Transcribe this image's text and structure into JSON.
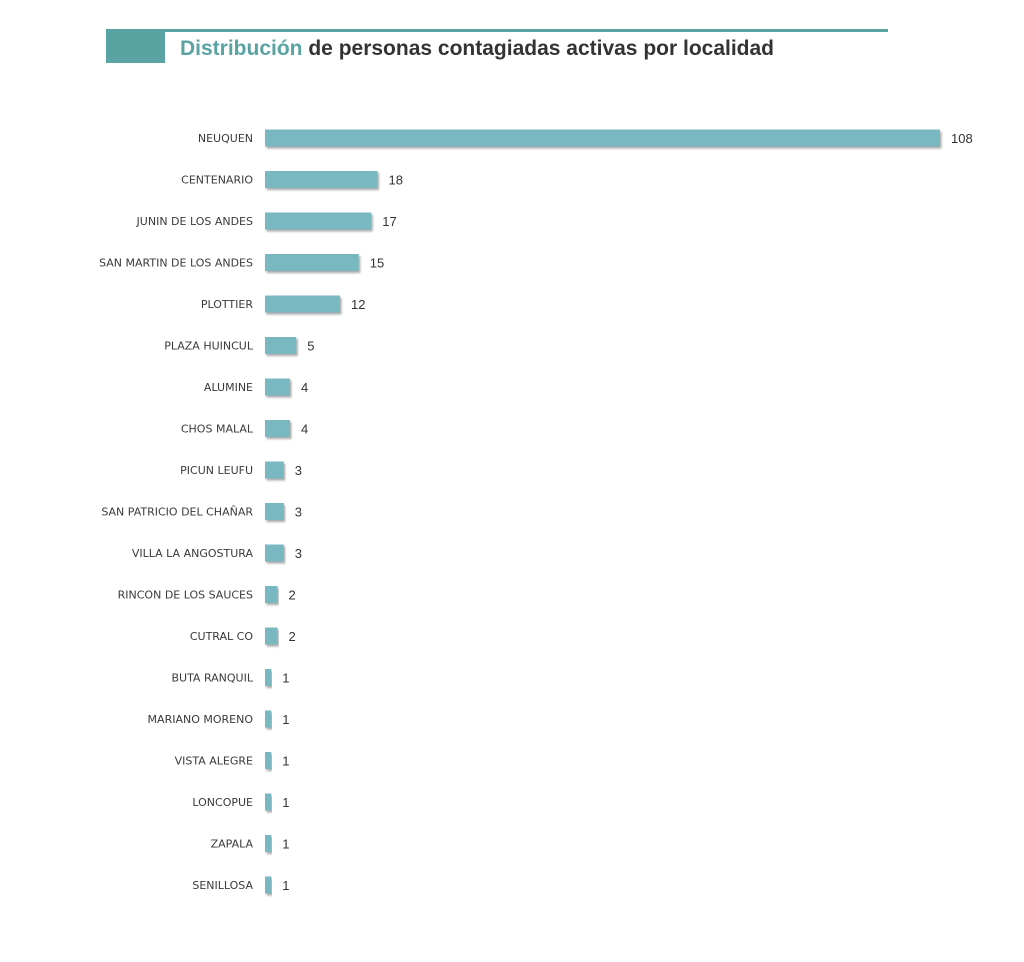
{
  "colors": {
    "accent": "#5aa3a3",
    "bar": "#7ab8c1",
    "bar_shadow": "#8a8a8a"
  },
  "header": {
    "title_highlight": "Distribución",
    "title_rest": " de personas contagiadas activas por localidad"
  },
  "chart_data": {
    "type": "bar",
    "orientation": "horizontal",
    "title": "Distribución de personas contagiadas activas por localidad",
    "categories": [
      "NEUQUEN",
      "CENTENARIO",
      "JUNIN DE LOS ANDES",
      "SAN MARTIN DE LOS ANDES",
      "PLOTTIER",
      "PLAZA HUINCUL",
      "ALUMINE",
      "CHOS MALAL",
      "PICUN LEUFU",
      "SAN PATRICIO DEL CHAÑAR",
      "VILLA LA ANGOSTURA",
      "RINCON DE LOS SAUCES",
      "CUTRAL CO",
      "BUTA RANQUIL",
      "MARIANO MORENO",
      "VISTA ALEGRE",
      "LONCOPUE",
      "ZAPALA",
      "SENILLOSA"
    ],
    "values": [
      108,
      18,
      17,
      15,
      12,
      5,
      4,
      4,
      3,
      3,
      3,
      2,
      2,
      1,
      1,
      1,
      1,
      1,
      1
    ],
    "xlim": [
      0,
      108
    ],
    "grid": false,
    "legend": "none",
    "data_labels": true
  }
}
